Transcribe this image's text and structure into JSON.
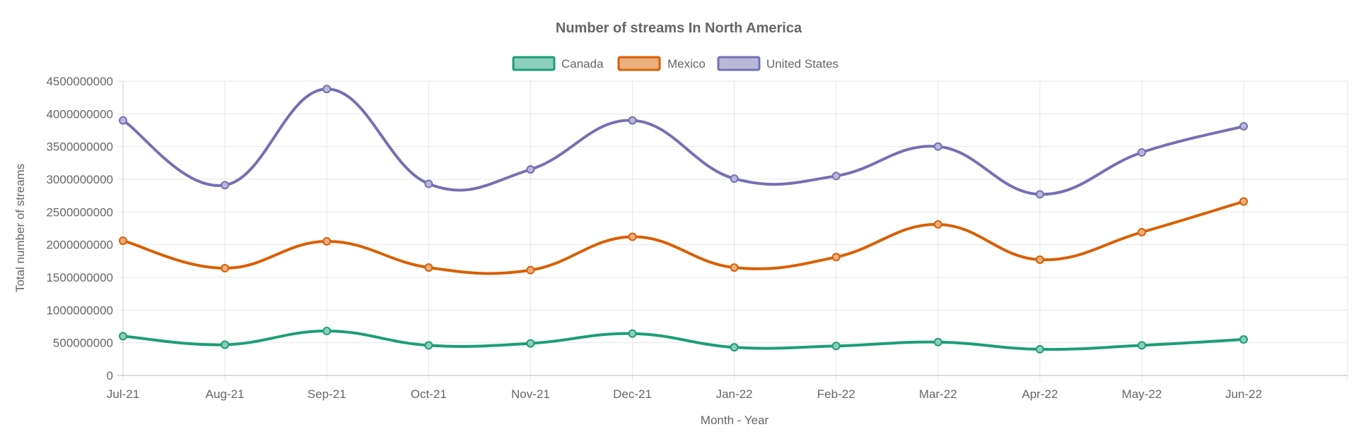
{
  "chart_data": {
    "type": "line",
    "title": "Number of streams In North America",
    "xlabel": "Month - Year",
    "ylabel": "Total number of streams",
    "categories": [
      "Jul-21",
      "Aug-21",
      "Sep-21",
      "Oct-21",
      "Nov-21",
      "Dec-21",
      "Jan-22",
      "Feb-22",
      "Mar-22",
      "Apr-22",
      "May-22",
      "Jun-22"
    ],
    "ylim": [
      0,
      4500000000
    ],
    "yticks": [
      "0",
      "500000000",
      "1000000000",
      "1500000000",
      "2000000000",
      "2500000000",
      "3000000000",
      "3500000000",
      "4000000000",
      "4500000000"
    ],
    "grid": true,
    "legend_position": "top",
    "series": [
      {
        "name": "Canada",
        "color": "#1b9e77",
        "fill": "#8dcfbb",
        "values": [
          600000000,
          470000000,
          680000000,
          460000000,
          490000000,
          640000000,
          430000000,
          450000000,
          510000000,
          400000000,
          460000000,
          550000000
        ]
      },
      {
        "name": "Mexico",
        "color": "#d95f02",
        "fill": "#ecaf80",
        "values": [
          2060000000,
          1640000000,
          2050000000,
          1650000000,
          1610000000,
          2120000000,
          1650000000,
          1810000000,
          2310000000,
          1770000000,
          2190000000,
          2660000000
        ]
      },
      {
        "name": "United States",
        "color": "#7570b3",
        "fill": "#bab8d9",
        "values": [
          3900000000,
          2910000000,
          4380000000,
          2930000000,
          3150000000,
          3900000000,
          3010000000,
          3050000000,
          3500000000,
          2770000000,
          3410000000,
          3810000000
        ]
      }
    ]
  }
}
